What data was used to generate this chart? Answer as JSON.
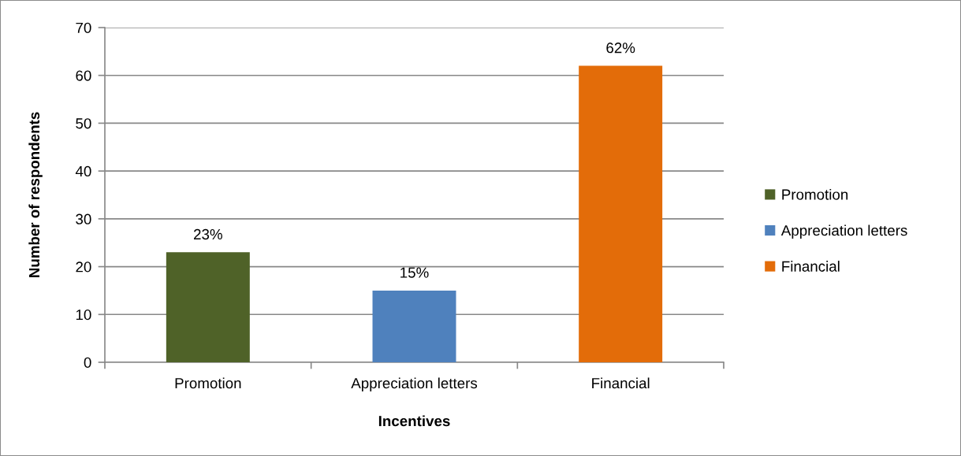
{
  "chart_data": {
    "type": "bar",
    "xlabel": "Incentives",
    "ylabel": "Number of respondents",
    "categories": [
      "Promotion",
      "Appreciation letters",
      "Financial"
    ],
    "series": [
      {
        "name": "Promotion",
        "color": "#4f6228",
        "values": [
          23,
          null,
          null
        ],
        "value_labels": [
          "23%",
          null,
          null
        ]
      },
      {
        "name": "Appreciation letters",
        "color": "#4f81bd",
        "values": [
          null,
          15,
          null
        ],
        "value_labels": [
          null,
          "15%",
          null
        ]
      },
      {
        "name": "Financial",
        "color": "#e36c09",
        "values": [
          null,
          null,
          62
        ],
        "value_labels": [
          null,
          null,
          "62%"
        ]
      }
    ],
    "ylim": [
      0,
      70
    ],
    "yticks": [
      0,
      10,
      20,
      30,
      40,
      50,
      60,
      70
    ],
    "grid": "y",
    "legend": "right"
  }
}
